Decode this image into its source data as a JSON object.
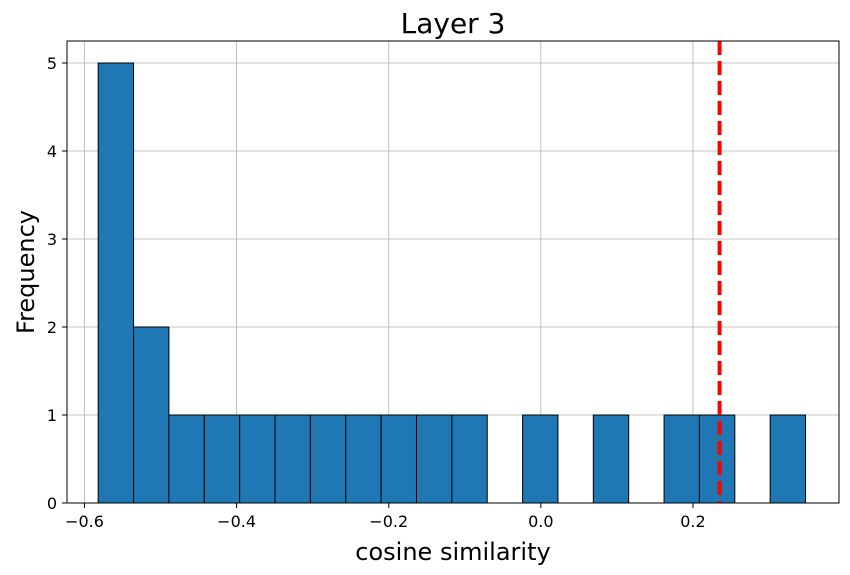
{
  "chart_data": {
    "type": "bar",
    "subtype": "histogram",
    "title": "Layer 3",
    "xlabel": "cosine similarity",
    "ylabel": "Frequency",
    "xlim": [
      -0.623,
      0.392
    ],
    "ylim": [
      0,
      5.25
    ],
    "grid": true,
    "bar_color": "#1f77b4",
    "edge_color": "#000000",
    "bin_edges": [
      -0.582,
      -0.5355,
      -0.489,
      -0.4425,
      -0.396,
      -0.3495,
      -0.303,
      -0.2565,
      -0.21,
      -0.1635,
      -0.117,
      -0.0705,
      -0.024,
      0.0225,
      0.069,
      0.1155,
      0.162,
      0.2085,
      0.255,
      0.3015,
      0.348
    ],
    "counts": [
      5,
      2,
      1,
      1,
      1,
      1,
      1,
      1,
      1,
      1,
      1,
      0,
      1,
      0,
      1,
      0,
      1,
      1,
      0,
      1
    ],
    "reference_line": {
      "x": 0.235,
      "color": "#ff0000",
      "style": "dashed"
    },
    "x_ticks": [
      -0.6,
      -0.4,
      -0.2,
      0.0,
      0.2
    ],
    "x_tick_labels": [
      "−0.6",
      "−0.4",
      "−0.2",
      "0.0",
      "0.2"
    ],
    "y_ticks": [
      0,
      1,
      2,
      3,
      4,
      5
    ],
    "y_tick_labels": [
      "0",
      "1",
      "2",
      "3",
      "4",
      "5"
    ]
  }
}
